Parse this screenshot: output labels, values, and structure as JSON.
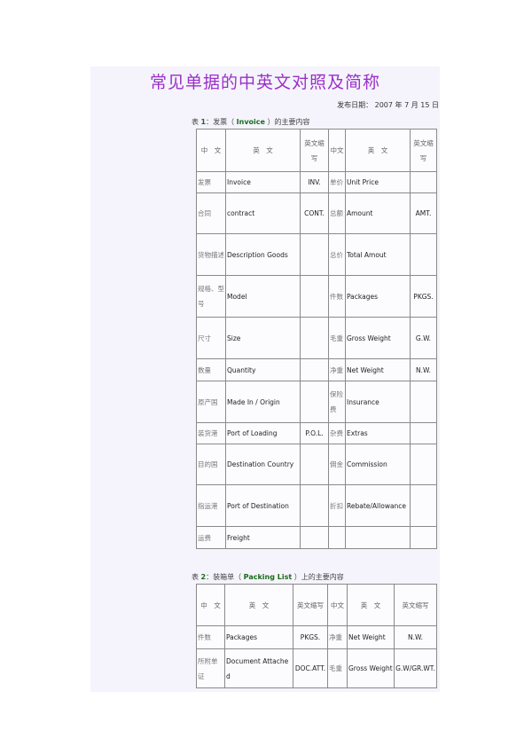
{
  "title": "常见单据的中英文对照及简称",
  "date": {
    "label": "发布日期：",
    "year": "2007",
    "y": "年",
    "month": "7",
    "m": "月",
    "day": "15",
    "d": "日"
  },
  "table1": {
    "caption": {
      "prefix": "表",
      "num": "1",
      "colon": "：发票（",
      "name": "Invoice",
      "suffix": "）的主要内容"
    },
    "headers": [
      "中　文",
      "英　文",
      "英文缩写",
      "中文",
      "英　文",
      "英文缩写"
    ],
    "rows": [
      [
        "发票",
        "Invoice",
        "INV.",
        "单价",
        "Unit Price",
        ""
      ],
      [
        "合同",
        "contract",
        "CONT.",
        "总额",
        "Amount",
        "AMT."
      ],
      [
        "货物描述",
        "Description Goods",
        "",
        "总价",
        "Total Amout",
        ""
      ],
      [
        "规格、型号",
        "Model",
        "",
        "件数",
        "Packages",
        "PKGS."
      ],
      [
        "尺寸",
        "Size",
        "",
        "毛重",
        "Gross Weight",
        "G.W."
      ],
      [
        "数量",
        "Quantity",
        "",
        "净重",
        "Net Weight",
        "N.W."
      ],
      [
        "原产国",
        "Made In / Origin",
        "",
        "保险费",
        "Insurance",
        ""
      ],
      [
        "装货港",
        "Port of Loading",
        "P.O.L.",
        "杂费",
        "Extras",
        ""
      ],
      [
        "目的国",
        "Destination Country",
        "",
        "佣金",
        "Commission",
        ""
      ],
      [
        "指运港",
        "Port of Destination",
        "",
        "折扣",
        "Rebate/Allowance",
        ""
      ],
      [
        "运费",
        "Freight",
        "",
        "",
        "",
        ""
      ]
    ]
  },
  "table2": {
    "caption": {
      "prefix": "表",
      "num": "2",
      "colon": "：装箱单（",
      "name": "Packing List",
      "suffix": "）上的主要内容"
    },
    "headers": [
      "中　文",
      "英　文",
      "英文缩写",
      "中文",
      "英　文",
      "英文缩写"
    ],
    "rows": [
      [
        "件数",
        "Packages",
        "PKGS.",
        "净重",
        "Net Weight",
        "N.W."
      ],
      [
        "所附单证",
        "Document Attached",
        "DOC.ATT.",
        "毛重",
        "Gross Weight",
        "G.W/GR.WT."
      ]
    ]
  }
}
